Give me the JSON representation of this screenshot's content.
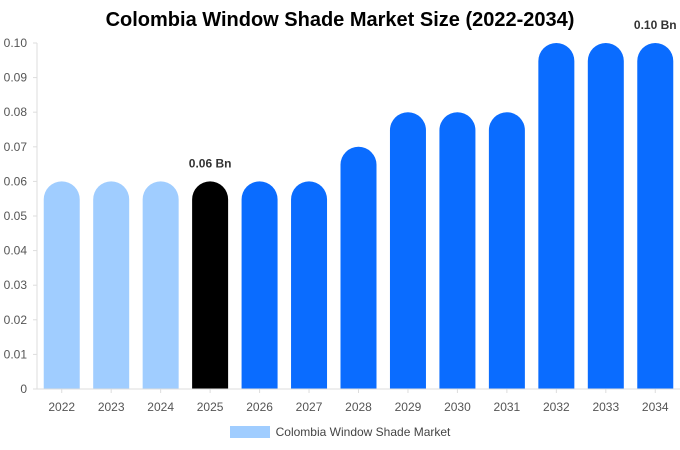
{
  "chart_data": {
    "type": "bar",
    "title": "Colombia Window Shade Market Size (2022-2034)",
    "categories": [
      "2022",
      "2023",
      "2024",
      "2025",
      "2026",
      "2027",
      "2028",
      "2029",
      "2030",
      "2031",
      "2032",
      "2033",
      "2034"
    ],
    "series": [
      {
        "name": "Colombia Window Shade Market",
        "values": [
          0.06,
          0.06,
          0.06,
          0.06,
          0.06,
          0.06,
          0.07,
          0.08,
          0.08,
          0.08,
          0.1,
          0.1,
          0.1
        ]
      }
    ],
    "bar_colors": [
      "#a0cdff",
      "#a0cdff",
      "#a0cdff",
      "#000000",
      "#0a6cff",
      "#0a6cff",
      "#0a6cff",
      "#0a6cff",
      "#0a6cff",
      "#0a6cff",
      "#0a6cff",
      "#0a6cff",
      "#0a6cff"
    ],
    "legend_color": "#a0cdff",
    "ylim": [
      0,
      0.1
    ],
    "yticks": [
      "0",
      "0.01",
      "0.02",
      "0.03",
      "0.04",
      "0.05",
      "0.06",
      "0.07",
      "0.08",
      "0.09",
      "0.10"
    ],
    "annotations": [
      {
        "category": "2025",
        "text": "0.06 Bn"
      },
      {
        "category": "2034",
        "text": "0.10 Bn"
      }
    ],
    "legend_position": "bottom",
    "grid": false
  }
}
